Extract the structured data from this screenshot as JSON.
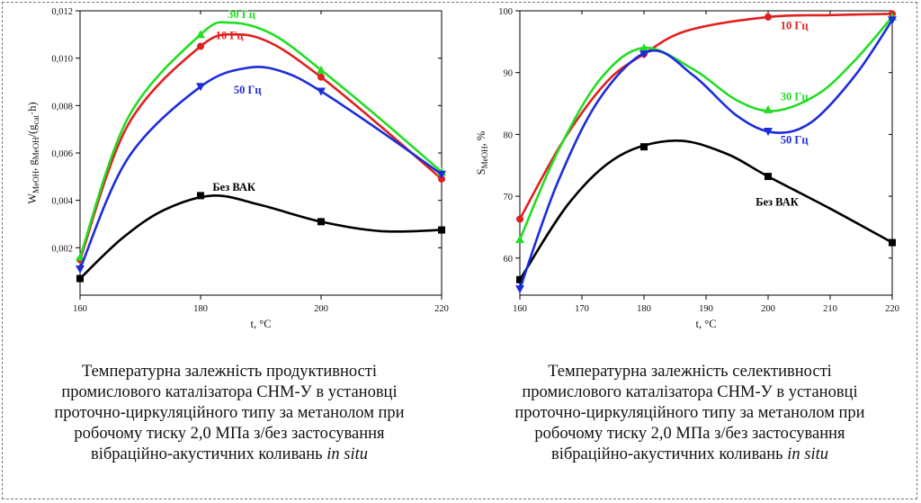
{
  "chart_data": [
    {
      "type": "line",
      "xlabel": "t, °C",
      "ylabel_parts": [
        "W",
        "MeOH",
        ", g",
        "MeOH",
        "/(g",
        "cat",
        "·h)"
      ],
      "xlim": [
        160,
        220
      ],
      "ylim": [
        0,
        0.012
      ],
      "xticks": [
        160,
        180,
        200,
        220
      ],
      "xtick_labels": [
        "160",
        "180",
        "200",
        "220"
      ],
      "yticks": [
        0.002,
        0.004,
        0.006,
        0.008,
        0.01,
        0.012
      ],
      "ytick_labels": [
        "0,002",
        "0,004",
        "0,006",
        "0,008",
        "0,010",
        "0,012"
      ],
      "series": [
        {
          "name": "Без ВАК",
          "color": "#000000",
          "marker": "square",
          "x": [
            160,
            180,
            200,
            220
          ],
          "y": [
            0.0007,
            0.0042,
            0.0031,
            0.00275
          ],
          "curve": [
            [
              160,
              0.0007
            ],
            [
              167,
              0.0024
            ],
            [
              174,
              0.0036
            ],
            [
              182,
              0.0042
            ],
            [
              190,
              0.0038
            ],
            [
              200,
              0.0031
            ],
            [
              210,
              0.0027
            ],
            [
              220,
              0.00275
            ]
          ]
        },
        {
          "name": "10 Гц",
          "color": "#e02020",
          "marker": "circle",
          "x": [
            160,
            180,
            200,
            220
          ],
          "y": [
            0.0015,
            0.0105,
            0.0092,
            0.0049
          ],
          "curve": [
            [
              160,
              0.0015
            ],
            [
              168,
              0.0072
            ],
            [
              180,
              0.0105
            ],
            [
              186,
              0.011
            ],
            [
              192,
              0.0106
            ],
            [
              200,
              0.0092
            ],
            [
              210,
              0.0071
            ],
            [
              220,
              0.0049
            ]
          ]
        },
        {
          "name": "30 Гц",
          "color": "#22dd22",
          "marker": "triangle-up",
          "x": [
            160,
            180,
            200,
            220
          ],
          "y": [
            0.0016,
            0.011,
            0.0095,
            0.0052
          ],
          "curve": [
            [
              160,
              0.0016
            ],
            [
              168,
              0.0075
            ],
            [
              180,
              0.011
            ],
            [
              185,
              0.0115
            ],
            [
              192,
              0.011
            ],
            [
              200,
              0.0095
            ],
            [
              210,
              0.0074
            ],
            [
              220,
              0.0052
            ]
          ]
        },
        {
          "name": "50 Гц",
          "color": "#1c2cdb",
          "marker": "triangle-down",
          "x": [
            160,
            180,
            200,
            220
          ],
          "y": [
            0.0011,
            0.0088,
            0.0086,
            0.0051
          ],
          "curve": [
            [
              160,
              0.0011
            ],
            [
              168,
              0.0058
            ],
            [
              180,
              0.0088
            ],
            [
              188,
              0.0096
            ],
            [
              194,
              0.0094
            ],
            [
              200,
              0.0086
            ],
            [
              210,
              0.0069
            ],
            [
              220,
              0.0051
            ]
          ]
        }
      ],
      "annotations": [
        {
          "text": "30 Гц",
          "color": "#22dd22",
          "x": 184.5,
          "y": 0.0117
        },
        {
          "text": "10 Гц",
          "color": "#e02020",
          "x": 182.5,
          "y": 0.0108
        },
        {
          "text": "50 Гц",
          "color": "#1c2cdb",
          "x": 185.5,
          "y": 0.0085
        },
        {
          "text": "Без ВАК",
          "color": "#000000",
          "x": 182,
          "y": 0.0044
        }
      ],
      "grid": false
    },
    {
      "type": "line",
      "xlabel": "t, °C",
      "ylabel_parts": [
        "S",
        "MeOH",
        ", %"
      ],
      "xlim": [
        160,
        220
      ],
      "ylim": [
        54,
        100
      ],
      "xticks": [
        160,
        170,
        180,
        190,
        200,
        210,
        220
      ],
      "xtick_labels": [
        "160",
        "170",
        "180",
        "190",
        "200",
        "210",
        "220"
      ],
      "yticks": [
        60,
        70,
        80,
        90,
        100
      ],
      "ytick_labels": [
        "60",
        "70",
        "80",
        "90",
        "100"
      ],
      "series": [
        {
          "name": "Без ВАК",
          "color": "#000000",
          "marker": "square",
          "x": [
            160,
            180,
            200,
            220
          ],
          "y": [
            56.5,
            78,
            73.2,
            62.5
          ],
          "curve": [
            [
              160,
              56.5
            ],
            [
              168,
              69
            ],
            [
              176,
              76.5
            ],
            [
              185,
              79
            ],
            [
              193,
              77
            ],
            [
              200,
              73.2
            ],
            [
              210,
              68
            ],
            [
              220,
              62.5
            ]
          ]
        },
        {
          "name": "10 Гц",
          "color": "#e02020",
          "marker": "circle",
          "x": [
            160,
            180,
            200,
            220
          ],
          "y": [
            66.3,
            93,
            99,
            99.5
          ],
          "curve": [
            [
              160,
              66.3
            ],
            [
              167,
              79
            ],
            [
              174,
              88.5
            ],
            [
              180,
              93
            ],
            [
              187,
              96.8
            ],
            [
              200,
              99
            ],
            [
              210,
              99.3
            ],
            [
              220,
              99.5
            ]
          ]
        },
        {
          "name": "30 Гц",
          "color": "#22dd22",
          "marker": "triangle-up",
          "x": [
            160,
            180,
            200,
            220
          ],
          "y": [
            63,
            94,
            84,
            99
          ],
          "curve": [
            [
              160,
              63
            ],
            [
              166,
              77
            ],
            [
              173,
              89
            ],
            [
              180,
              94
            ],
            [
              188,
              90.5
            ],
            [
              195,
              85.5
            ],
            [
              201,
              83.8
            ],
            [
              208,
              86.5
            ],
            [
              214,
              92
            ],
            [
              220,
              99
            ]
          ]
        },
        {
          "name": "50 Гц",
          "color": "#1c2cdb",
          "marker": "triangle-down",
          "x": [
            160,
            180,
            200,
            220
          ],
          "y": [
            55,
            93,
            80.5,
            98.5
          ],
          "curve": [
            [
              160,
              55
            ],
            [
              166,
              72
            ],
            [
              173,
              86
            ],
            [
              181,
              93.5
            ],
            [
              188,
              89.5
            ],
            [
              195,
              83
            ],
            [
              201,
              80.3
            ],
            [
              207,
              82
            ],
            [
              214,
              89.5
            ],
            [
              220,
              98.5
            ]
          ]
        }
      ],
      "annotations": [
        {
          "text": "10 Гц",
          "color": "#e02020",
          "x": 202,
          "y": 97
        },
        {
          "text": "30 Гц",
          "color": "#22dd22",
          "x": 202,
          "y": 85.5
        },
        {
          "text": "50 Гц",
          "color": "#1c2cdb",
          "x": 202,
          "y": 78.5
        },
        {
          "text": "Без ВАК",
          "color": "#000000",
          "x": 198,
          "y": 68.5
        }
      ],
      "grid": false
    }
  ],
  "captions": {
    "left": {
      "line1": "Температурна залежність продуктивності",
      "line2": "промислового каталізатора СНМ-У в установці",
      "line3": "проточно-циркуляційного типу за метанолом при",
      "line4": "робочому тиску 2,0 МПа з/без застосування",
      "line5_text": "вібраційно-акустичних коливань ",
      "line5_italic": "in situ"
    },
    "right": {
      "line1": "Температурна залежність селективності",
      "line2": "промислового каталізатора СНМ-У в установці",
      "line3": "проточно-циркуляційного типу за метанолом при",
      "line4": "робочому тиску 2,0 МПа з/без застосування",
      "line5_text": "вібраційно-акустичних коливань ",
      "line5_italic": "in situ"
    }
  }
}
